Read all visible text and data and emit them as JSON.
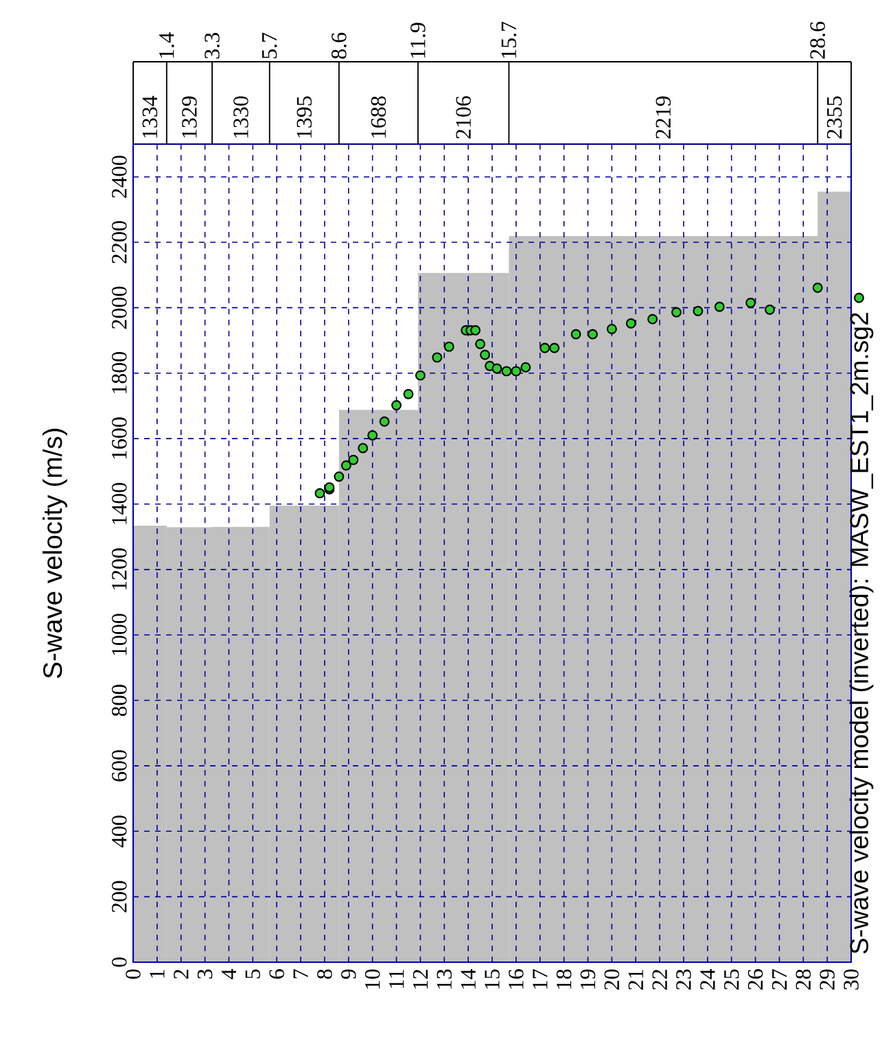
{
  "chart_data": {
    "type": "scatter",
    "ylabel": "S-wave velocity (m/s)",
    "xlim": [
      0,
      30
    ],
    "ylim": [
      0,
      2500
    ],
    "xticks": [
      0,
      1,
      2,
      3,
      4,
      5,
      6,
      7,
      8,
      9,
      10,
      11,
      12,
      13,
      14,
      15,
      16,
      17,
      18,
      19,
      20,
      21,
      22,
      23,
      24,
      25,
      26,
      27,
      28,
      29,
      30
    ],
    "yticks": [
      0,
      200,
      400,
      600,
      800,
      1000,
      1200,
      1400,
      1600,
      1800,
      2000,
      2200,
      2400
    ],
    "x2lim": [
      0,
      30
    ],
    "x2ticks": [
      1.4,
      3.3,
      5.7,
      8.6,
      11.9,
      15.7,
      28.6
    ],
    "grid": true,
    "legend": "right",
    "marker": "circle",
    "series": [
      {
        "type": "histogram",
        "color": "#c0c0c0",
        "bins": [
          0,
          1.4,
          3.3,
          5.7,
          8.6,
          11.9,
          15.7,
          28.6,
          30
        ],
        "values": [
          1334,
          1329,
          1330,
          1395,
          1688,
          2106,
          2219,
          2355
        ]
      },
      {
        "name": "S-wave velocity model (inverted): MASW_EST1_2m.sg2",
        "color": "#33cc33",
        "x": [
          7.8,
          8.2,
          8.2,
          8.6,
          8.9,
          9.2,
          9.6,
          10.0,
          10.5,
          11.0,
          11.5,
          12.0,
          12.7,
          13.2,
          13.9,
          14.1,
          14.3,
          14.5,
          14.7,
          14.9,
          15.2,
          15.6,
          16.0,
          16.4,
          17.2,
          17.6,
          18.5,
          19.2,
          20.0,
          20.8,
          21.7,
          22.7,
          23.6,
          24.5,
          25.8,
          26.6,
          28.6
        ],
        "values": [
          1433,
          1445,
          1451,
          1484,
          1518,
          1535,
          1571,
          1610,
          1652,
          1702,
          1736,
          1793,
          1848,
          1881,
          1931,
          1931,
          1931,
          1889,
          1856,
          1822,
          1814,
          1806,
          1806,
          1818,
          1877,
          1877,
          1919,
          1919,
          1935,
          1952,
          1965,
          1986,
          1990,
          2003,
          2015,
          1994,
          2061
        ]
      }
    ],
    "annotations": [
      "1334",
      "1329",
      "1330",
      "1395",
      "1688",
      "2106",
      "2219",
      "2355"
    ]
  }
}
